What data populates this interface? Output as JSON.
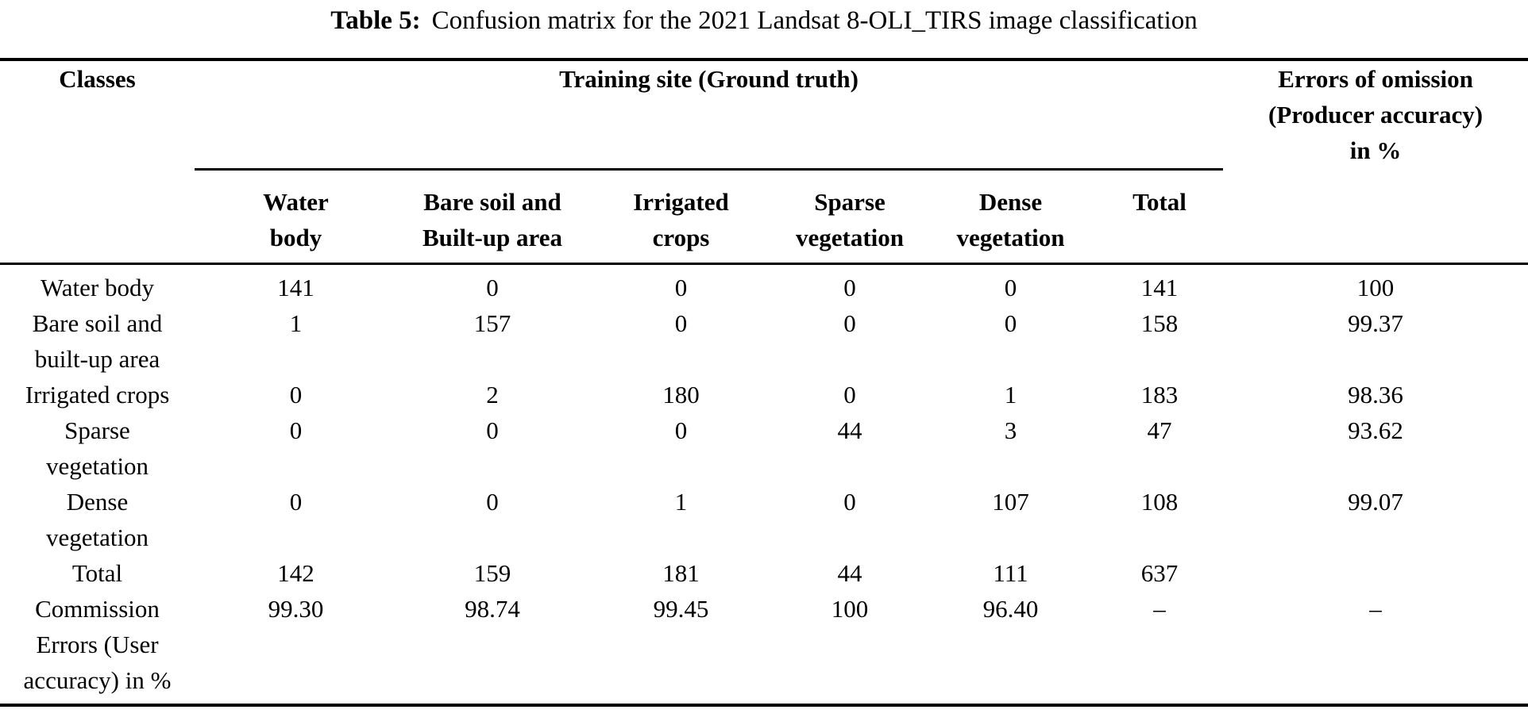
{
  "title": {
    "label": "Table 5:",
    "text": "Confusion matrix for the 2021 Landsat 8-OLI_TIRS image classification"
  },
  "table": {
    "classes_header": "Classes",
    "group_header": "Training site (Ground truth)",
    "omission_header_lines": [
      "Errors of omission",
      "(Producer accuracy)",
      "in %"
    ],
    "columns": [
      {
        "label": "Water body",
        "lines": [
          "Water",
          "body"
        ]
      },
      {
        "label": "Bare soil and Built-up area",
        "lines": [
          "Bare soil and",
          "Built-up area"
        ]
      },
      {
        "label": "Irrigated crops",
        "lines": [
          "Irrigated",
          "crops"
        ]
      },
      {
        "label": "Sparse vegetation",
        "lines": [
          "Sparse",
          "vegetation"
        ]
      },
      {
        "label": "Dense vegetation",
        "lines": [
          "Dense",
          "vegetation"
        ]
      },
      {
        "label": "Total",
        "lines": [
          "Total"
        ]
      }
    ],
    "rows": [
      {
        "label": "Water body",
        "label_lines": [
          "Water body"
        ],
        "values": [
          "141",
          "0",
          "0",
          "0",
          "0",
          "141"
        ],
        "omission": "100"
      },
      {
        "label": "Bare soil and built-up area",
        "label_lines": [
          "Bare soil and",
          "built-up area"
        ],
        "values": [
          "1",
          "157",
          "0",
          "0",
          "0",
          "158"
        ],
        "omission": "99.37"
      },
      {
        "label": "Irrigated crops",
        "label_lines": [
          "Irrigated crops"
        ],
        "values": [
          "0",
          "2",
          "180",
          "0",
          "1",
          "183"
        ],
        "omission": "98.36"
      },
      {
        "label": "Sparse vegetation",
        "label_lines": [
          "Sparse",
          "vegetation"
        ],
        "values": [
          "0",
          "0",
          "0",
          "44",
          "3",
          "47"
        ],
        "omission": "93.62"
      },
      {
        "label": "Dense vegetation",
        "label_lines": [
          "Dense",
          "vegetation"
        ],
        "values": [
          "0",
          "0",
          "1",
          "0",
          "107",
          "108"
        ],
        "omission": "99.07"
      },
      {
        "label": "Total",
        "label_lines": [
          "Total"
        ],
        "values": [
          "142",
          "159",
          "181",
          "44",
          "111",
          "637"
        ],
        "omission": ""
      },
      {
        "label": "Commission Errors (User accuracy) in %",
        "label_lines": [
          "Commission",
          "Errors (User",
          "accuracy) in %"
        ],
        "values": [
          "99.30",
          "98.74",
          "99.45",
          "100",
          "96.40",
          "–"
        ],
        "omission": "–"
      }
    ]
  }
}
